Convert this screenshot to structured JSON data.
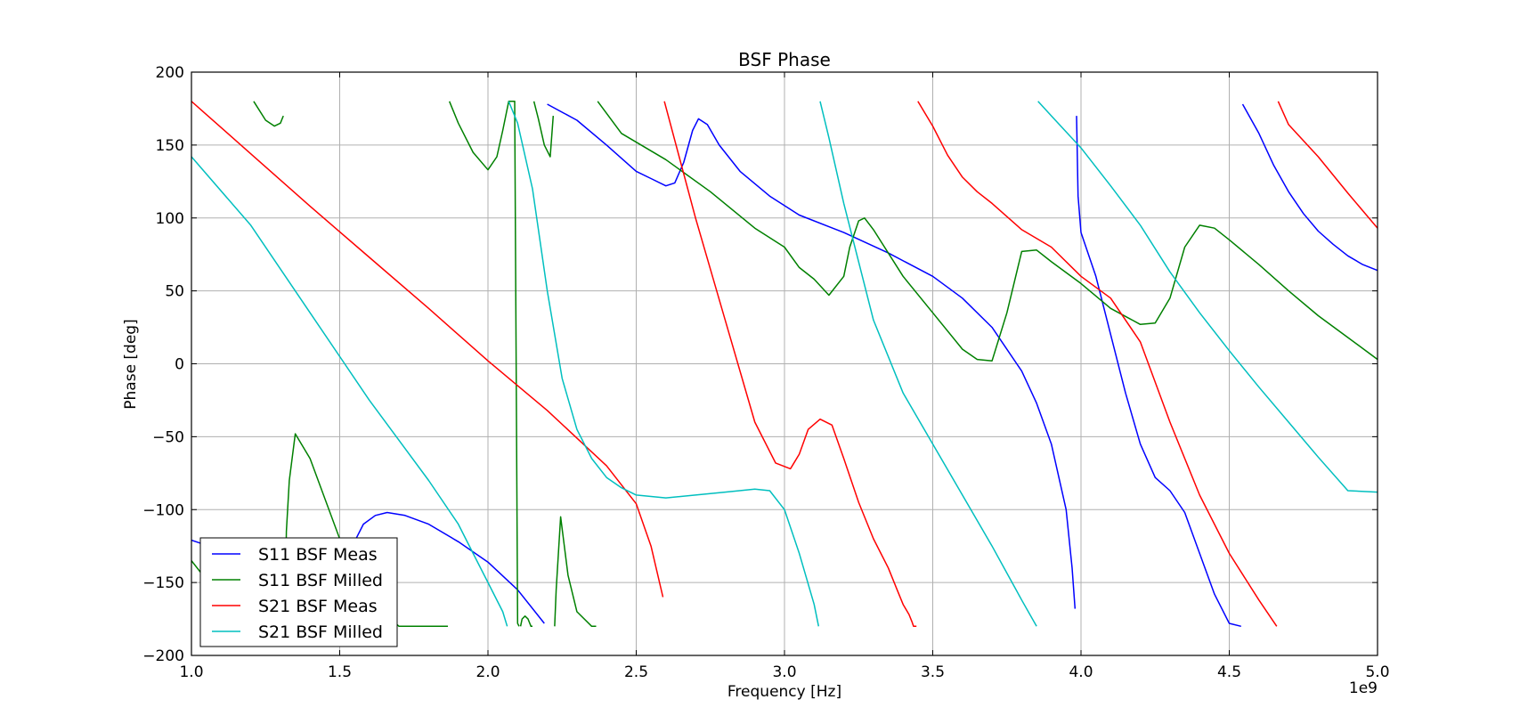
{
  "chart_data": {
    "type": "line",
    "title": "BSF Phase",
    "xlabel": "Frequency [Hz]",
    "ylabel": "Phase [deg]",
    "x_scale_label": "1e9",
    "xlim": [
      1.0,
      5.0
    ],
    "ylim": [
      -200,
      200
    ],
    "xticks": [
      1.0,
      1.5,
      2.0,
      2.5,
      3.0,
      3.5,
      4.0,
      4.5,
      5.0
    ],
    "xtick_labels": [
      "1.0",
      "1.5",
      "2.0",
      "2.5",
      "3.0",
      "3.5",
      "4.0",
      "4.5",
      "5.0"
    ],
    "yticks": [
      200,
      150,
      100,
      50,
      0,
      -50,
      -100,
      -150,
      -200
    ],
    "ytick_labels": [
      "200",
      "150",
      "100",
      "50",
      "0",
      "−50",
      "−100",
      "−150",
      "−200"
    ],
    "grid": true,
    "legend_position": "lower-left",
    "x_units_note": "x values in GHz (axis multiplier 1e9)",
    "series": [
      {
        "name": "S11 BSF Meas",
        "color": "#0000ff",
        "x": [
          1.0,
          1.03,
          1.06,
          1.1,
          1.15,
          1.2,
          1.25,
          1.3,
          1.35,
          1.4,
          1.45,
          1.5,
          1.55,
          1.58,
          1.62,
          1.66,
          1.72,
          1.8,
          1.9,
          2.0,
          2.1,
          2.19,
          null,
          2.2,
          2.3,
          2.4,
          2.5,
          2.55,
          2.6,
          2.63,
          2.66,
          2.69,
          2.71,
          2.74,
          2.78,
          2.85,
          2.95,
          3.05,
          3.2,
          3.35,
          3.5,
          3.6,
          3.7,
          3.8,
          3.85,
          3.9,
          3.95,
          3.97,
          3.98,
          null,
          3.985,
          3.99,
          4.0,
          4.05,
          4.1,
          4.15,
          4.2,
          4.25,
          4.3,
          4.35,
          4.4,
          4.45,
          4.5,
          4.54,
          null,
          4.545,
          4.6,
          4.65,
          4.7,
          4.75,
          4.8,
          4.85,
          4.9,
          4.95,
          5.0
        ],
        "y": [
          -121,
          -123,
          -125,
          -128,
          -131,
          -133,
          -133,
          -131,
          -129,
          -127,
          -124,
          -124,
          -122,
          -110,
          -104,
          -102,
          -104,
          -110,
          -122,
          -136,
          -155,
          -178,
          null,
          178,
          167,
          150,
          132,
          127,
          122,
          124,
          138,
          160,
          168,
          164,
          150,
          132,
          115,
          102,
          90,
          76,
          60,
          45,
          25,
          -5,
          -27,
          -55,
          -100,
          -140,
          -168,
          null,
          170,
          115,
          90,
          60,
          20,
          -20,
          -55,
          -78,
          -87,
          -102,
          -130,
          -158,
          -178,
          -180,
          null,
          178,
          158,
          136,
          118,
          103,
          91,
          82,
          74,
          68,
          64
        ]
      },
      {
        "name": "S11 BSF Milled",
        "color": "#008000",
        "x": [
          1.0,
          1.05,
          1.1,
          1.15,
          1.2,
          1.205,
          null,
          1.21,
          1.25,
          1.28,
          1.3,
          1.31,
          null,
          1.315,
          1.32,
          1.33,
          1.35,
          1.4,
          1.5,
          1.6,
          1.7,
          1.8,
          1.86,
          1.865,
          null,
          1.87,
          1.9,
          1.95,
          2.0,
          2.03,
          2.05,
          2.07,
          2.09,
          2.1,
          2.105,
          null,
          2.11,
          2.115,
          2.125,
          2.135,
          2.145,
          2.15,
          null,
          2.155,
          2.17,
          2.19,
          2.21,
          2.22,
          null,
          2.225,
          2.23,
          2.245,
          2.27,
          2.3,
          2.35,
          2.365,
          null,
          2.37,
          2.45,
          2.6,
          2.75,
          2.9,
          3.0,
          3.05,
          3.1,
          3.15,
          3.2,
          3.22,
          3.25,
          3.27,
          3.3,
          3.4,
          3.5,
          3.6,
          3.65,
          3.7,
          3.75,
          3.8,
          3.85,
          3.9,
          4.0,
          4.1,
          4.2,
          4.25,
          4.3,
          4.35,
          4.4,
          4.45,
          4.5,
          4.6,
          4.7,
          4.8,
          4.9,
          5.0
        ],
        "y": [
          -135,
          -148,
          -160,
          -172,
          -180,
          -180,
          null,
          180,
          167,
          163,
          165,
          170,
          null,
          -180,
          -115,
          -80,
          -48,
          -65,
          -120,
          -162,
          -180,
          -180,
          -180,
          -180,
          null,
          180,
          165,
          145,
          133,
          142,
          160,
          180,
          180,
          -178,
          -180,
          null,
          -180,
          -175,
          -173,
          -175,
          -180,
          -180,
          null,
          180,
          168,
          150,
          142,
          170,
          null,
          -180,
          -155,
          -105,
          -145,
          -170,
          -180,
          -180,
          null,
          180,
          158,
          140,
          118,
          93,
          80,
          66,
          58,
          47,
          60,
          80,
          98,
          100,
          92,
          60,
          35,
          10,
          3,
          2,
          35,
          77,
          78,
          70,
          55,
          38,
          27,
          28,
          45,
          80,
          95,
          93,
          85,
          68,
          50,
          33,
          18,
          3
        ]
      },
      {
        "name": "S21 BSF Meas",
        "color": "#ff0000",
        "x": [
          1.0,
          1.2,
          1.4,
          1.6,
          1.8,
          2.0,
          2.2,
          2.4,
          2.5,
          2.55,
          2.59,
          null,
          2.595,
          2.7,
          2.8,
          2.9,
          2.97,
          3.02,
          3.05,
          3.08,
          3.12,
          3.16,
          3.2,
          3.25,
          3.3,
          3.35,
          3.38,
          3.4,
          3.42,
          3.43,
          3.435,
          3.44,
          3.445,
          null,
          3.45,
          3.5,
          3.55,
          3.6,
          3.65,
          3.7,
          3.8,
          3.9,
          4.0,
          4.1,
          4.2,
          4.3,
          4.4,
          4.5,
          4.6,
          4.66,
          null,
          4.665,
          4.7,
          4.8,
          4.9,
          5.0
        ],
        "y": [
          180,
          144,
          108,
          73,
          38,
          2,
          -32,
          -70,
          -96,
          -125,
          -160,
          null,
          180,
          100,
          30,
          -40,
          -68,
          -72,
          -62,
          -45,
          -38,
          -42,
          -65,
          -95,
          -120,
          -140,
          -155,
          -165,
          -172,
          -177,
          -180,
          -180,
          -180,
          null,
          180,
          163,
          143,
          128,
          118,
          110,
          92,
          80,
          60,
          45,
          15,
          -40,
          -90,
          -130,
          -162,
          -180,
          null,
          180,
          164,
          142,
          117,
          93
        ]
      },
      {
        "name": "S21 BSF Milled",
        "color": "#00bfbf",
        "x": [
          1.0,
          1.2,
          1.4,
          1.6,
          1.8,
          1.9,
          1.95,
          2.0,
          2.05,
          2.065,
          null,
          2.07,
          2.1,
          2.15,
          2.2,
          2.25,
          2.3,
          2.35,
          2.4,
          2.45,
          2.5,
          2.6,
          2.7,
          2.8,
          2.9,
          2.95,
          3.0,
          3.05,
          3.1,
          3.115,
          null,
          3.12,
          3.15,
          3.2,
          3.3,
          3.4,
          3.5,
          3.6,
          3.7,
          3.8,
          3.85,
          null,
          3.855,
          3.9,
          4.0,
          4.1,
          4.2,
          4.3,
          4.4,
          4.5,
          4.6,
          4.7,
          4.8,
          4.9,
          5.0
        ],
        "y": [
          142,
          95,
          35,
          -25,
          -80,
          -110,
          -130,
          -150,
          -170,
          -180,
          null,
          180,
          165,
          120,
          50,
          -10,
          -45,
          -65,
          -78,
          -85,
          -90,
          -92,
          -90,
          -88,
          -86,
          -87,
          -100,
          -130,
          -165,
          -180,
          null,
          180,
          155,
          110,
          30,
          -20,
          -55,
          -90,
          -125,
          -162,
          -180,
          null,
          180,
          170,
          148,
          122,
          95,
          63,
          35,
          9,
          -16,
          -40,
          -64,
          -87,
          -88
        ]
      }
    ]
  }
}
